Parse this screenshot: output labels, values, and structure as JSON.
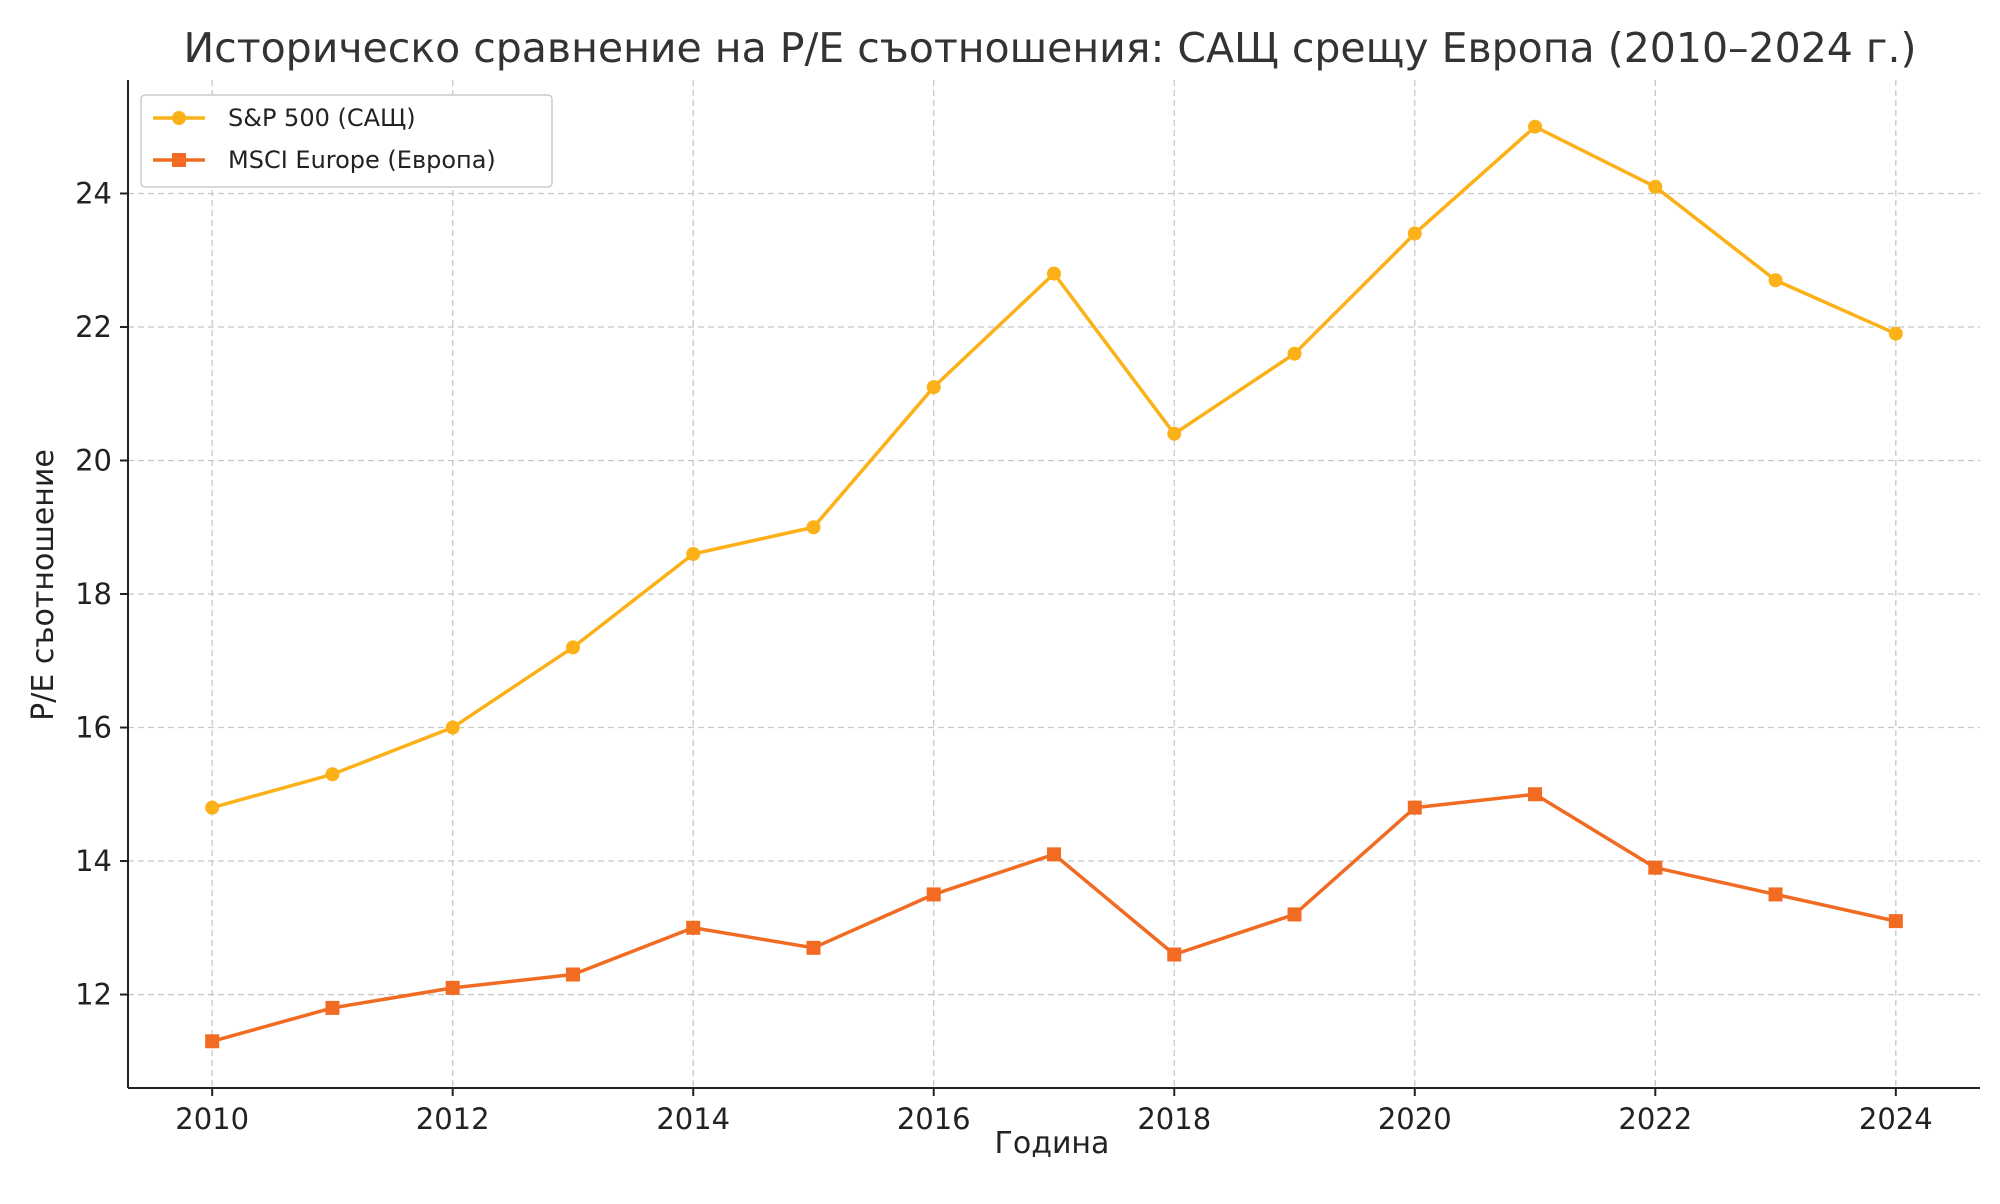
{
  "chart_data": {
    "type": "line",
    "title": "Историческо сравнение на P/E съотношения: САЩ срещу Европа (2010–2024 г.)",
    "xlabel": "Година",
    "ylabel": "P/E съотношение",
    "x": [
      2010,
      2011,
      2012,
      2013,
      2014,
      2015,
      2016,
      2017,
      2018,
      2019,
      2020,
      2021,
      2022,
      2023,
      2024
    ],
    "xlim": [
      2009.3,
      2024.7
    ],
    "ylim": [
      10.6,
      25.7
    ],
    "xticks": [
      2010,
      2012,
      2014,
      2016,
      2018,
      2020,
      2022,
      2024
    ],
    "yticks": [
      12,
      14,
      16,
      18,
      20,
      22,
      24
    ],
    "grid": true,
    "legend_position": "top-left",
    "series": [
      {
        "name": "S&P 500 (САЩ)",
        "color": "#FBB117",
        "marker": "circle",
        "values": [
          14.8,
          15.3,
          16.0,
          17.2,
          18.6,
          19.0,
          21.1,
          22.8,
          20.4,
          21.6,
          23.4,
          25.0,
          24.1,
          22.7,
          21.9
        ]
      },
      {
        "name": "MSCI Europe (Европа)",
        "color": "#F26B22",
        "marker": "square",
        "values": [
          11.3,
          11.8,
          12.1,
          12.3,
          13.0,
          12.7,
          13.5,
          14.1,
          12.6,
          13.2,
          14.8,
          15.0,
          13.9,
          13.5,
          13.1
        ]
      }
    ]
  }
}
